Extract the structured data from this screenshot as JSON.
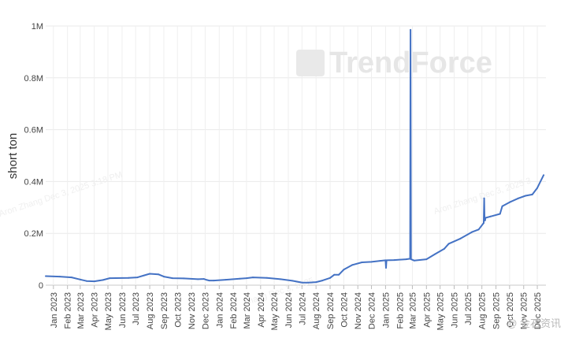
{
  "chart_data": {
    "type": "line",
    "ylabel": "short ton",
    "xlabel": "",
    "title": "",
    "ylim": [
      0,
      1000000
    ],
    "y_ticks": [
      0,
      200000,
      400000,
      600000,
      800000,
      1000000
    ],
    "y_tick_labels": [
      "0",
      "0.2M",
      "0.4M",
      "0.6M",
      "0.8M",
      "1M"
    ],
    "x_range": [
      "2022-12-15",
      "2025-12-20"
    ],
    "x_tick_labels": [
      "Jan 2023",
      "Feb 2023",
      "Mar 2023",
      "Apr 2023",
      "May 2023",
      "Jun 2023",
      "Jul 2023",
      "Aug 2023",
      "Sep 2023",
      "Oct 2023",
      "Nov 2023",
      "Dec 2023",
      "Jan 2024",
      "Feb 2024",
      "Mar 2024",
      "Apr 2024",
      "May 2024",
      "Jun 2024",
      "Jul 2024",
      "Aug 2024",
      "Sep 2024",
      "Oct 2024",
      "Nov 2024",
      "Dec 2024",
      "Jan 2025",
      "Feb 2025",
      "Mar 2025",
      "Apr 2025",
      "May 2025",
      "Jun 2025",
      "Jul 2025",
      "Aug 2025",
      "Sep 2025",
      "Oct 2025",
      "Nov 2025",
      "Dec 2025"
    ],
    "grid": true,
    "legend": "none",
    "series_color": "#4472c4",
    "series": [
      {
        "x": [
          "2022-12-15",
          "2023-01-15",
          "2023-02-10",
          "2023-03-01",
          "2023-03-15",
          "2023-04-01",
          "2023-04-20",
          "2023-05-05",
          "2023-06-15",
          "2023-07-05",
          "2023-07-20",
          "2023-08-01",
          "2023-08-20",
          "2023-09-01",
          "2023-09-20",
          "2023-10-15",
          "2023-11-15",
          "2023-11-28",
          "2023-12-05",
          "2023-12-10",
          "2023-12-20",
          "2024-01-15",
          "2024-02-15",
          "2024-03-01",
          "2024-03-15",
          "2024-04-15",
          "2024-05-15",
          "2024-06-10",
          "2024-07-01",
          "2024-07-15",
          "2024-08-01",
          "2024-08-15",
          "2024-09-01",
          "2024-09-10",
          "2024-09-20",
          "2024-10-01",
          "2024-10-20",
          "2024-11-10",
          "2024-12-01",
          "2024-12-20",
          "2025-01-01",
          "2025-01-02",
          "2025-01-03",
          "2025-01-20",
          "2025-02-15",
          "2025-02-24",
          "2025-02-25",
          "2025-02-26",
          "2025-03-05",
          "2025-04-01",
          "2025-04-20",
          "2025-05-10",
          "2025-05-20",
          "2025-06-15",
          "2025-07-10",
          "2025-07-25",
          "2025-08-05",
          "2025-08-06",
          "2025-08-07",
          "2025-08-08",
          "2025-08-09",
          "2025-08-20",
          "2025-09-10",
          "2025-09-15",
          "2025-10-01",
          "2025-10-20",
          "2025-11-05",
          "2025-11-20",
          "2025-12-01",
          "2025-12-15"
        ],
        "y": [
          35000,
          33000,
          30000,
          22000,
          16000,
          15000,
          20000,
          27000,
          28000,
          30000,
          38000,
          44000,
          42000,
          33000,
          27000,
          26000,
          23000,
          24000,
          20000,
          18000,
          18000,
          21000,
          25000,
          27000,
          30000,
          28000,
          23000,
          17000,
          10000,
          10000,
          12000,
          18000,
          28000,
          40000,
          40000,
          60000,
          78000,
          88000,
          90000,
          94000,
          96000,
          67000,
          96000,
          97000,
          100000,
          102000,
          985000,
          100000,
          95000,
          100000,
          120000,
          140000,
          160000,
          180000,
          205000,
          215000,
          240000,
          335000,
          250000,
          250000,
          260000,
          265000,
          275000,
          305000,
          320000,
          335000,
          345000,
          350000,
          375000,
          425000
        ]
      }
    ]
  },
  "watermark": {
    "brand": "TrendForce",
    "stamp_left": "Aron Zhang Dec 3, 2025 3:18 PM",
    "stamp_mid": "Zhang Dec 3, 2025",
    "stamp_right": "Aron Zhang Dec 3, 2025 3",
    "corner": "@ 金石资讯"
  }
}
